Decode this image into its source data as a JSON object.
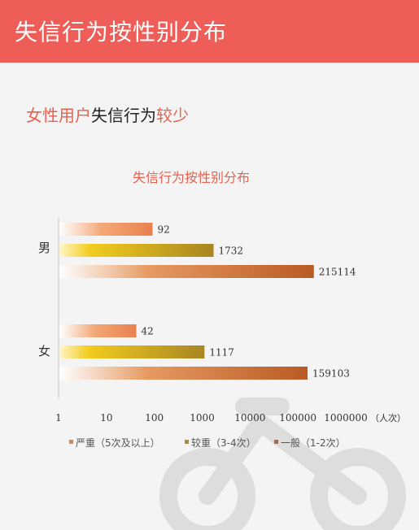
{
  "header": {
    "title": "失信行为按性别分布"
  },
  "subtitle": {
    "part1": "女性用户",
    "part2": "失信行为",
    "part3": "较少"
  },
  "colors": {
    "header_bg": "#ee5d57",
    "accent_red": "#e8614f",
    "series_severe": "#e8804f",
    "series_moderate": "#b48a1e",
    "series_general": "#c0652a"
  },
  "chart_data": {
    "type": "bar",
    "orientation": "horizontal",
    "title": "失信行为按性别分布",
    "xscale": "log",
    "xlim": [
      1,
      1000000
    ],
    "xticks": [
      "1",
      "10",
      "100",
      "1000",
      "10000",
      "100000",
      "1000000"
    ],
    "xunit": "（人次）",
    "categories": [
      "男",
      "女"
    ],
    "series": [
      {
        "name": "严重（5次及以上）",
        "values": [
          92,
          42
        ]
      },
      {
        "name": "较重（3-4次）",
        "values": [
          1732,
          1117
        ]
      },
      {
        "name": "一般（1-2次）",
        "values": [
          215114,
          159103
        ]
      }
    ],
    "legend_position": "bottom"
  },
  "decoration": {
    "bike_watermark_icon": "bicycle-icon"
  }
}
